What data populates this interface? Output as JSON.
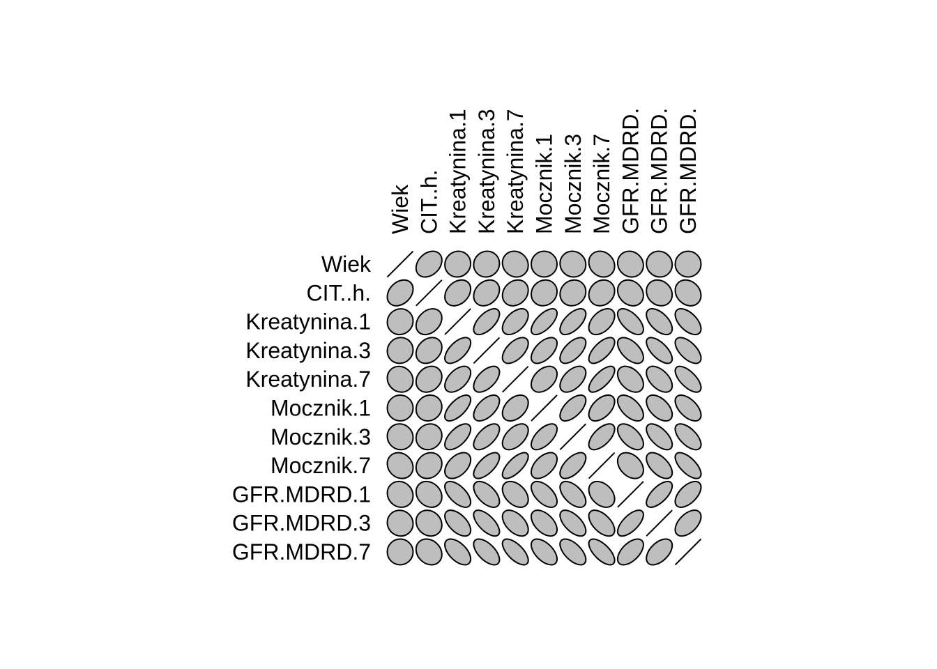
{
  "chart_data": {
    "type": "heatmap",
    "style": "ellipse correlation matrix",
    "row_labels": [
      "Wiek",
      "CIT..h.",
      "Kreatynina.1",
      "Kreatynina.3",
      "Kreatynina.7",
      "Mocznik.1",
      "Mocznik.3",
      "Mocznik.7",
      "GFR.MDRD.1",
      "GFR.MDRD.3",
      "GFR.MDRD.7"
    ],
    "column_labels": [
      "Wiek",
      "CIT..h.",
      "Kreatynina.1",
      "Kreatynina.3",
      "Kreatynina.7",
      "Mocznik.1",
      "Mocznik.3",
      "Mocznik.7",
      "GFR.MDRD.",
      "GFR.MDRD.",
      "GFR.MDRD."
    ],
    "matrix": [
      [
        1.0,
        0.3,
        0.05,
        0.05,
        -0.1,
        0.0,
        -0.05,
        -0.15,
        -0.1,
        -0.05,
        0.0
      ],
      [
        0.3,
        1.0,
        0.3,
        0.25,
        0.2,
        0.1,
        0.1,
        0.15,
        -0.2,
        -0.15,
        -0.2
      ],
      [
        0.05,
        0.3,
        1.0,
        0.6,
        0.5,
        0.65,
        0.6,
        0.45,
        -0.6,
        -0.55,
        -0.55
      ],
      [
        0.05,
        0.25,
        0.6,
        1.0,
        0.55,
        0.55,
        0.6,
        0.65,
        -0.55,
        -0.65,
        -0.6
      ],
      [
        -0.1,
        0.2,
        0.5,
        0.55,
        1.0,
        0.4,
        0.5,
        0.7,
        -0.4,
        -0.5,
        -0.65
      ],
      [
        0.0,
        0.1,
        0.65,
        0.55,
        0.4,
        1.0,
        0.6,
        0.5,
        -0.55,
        -0.5,
        -0.55
      ],
      [
        -0.05,
        0.1,
        0.6,
        0.6,
        0.5,
        0.6,
        1.0,
        0.6,
        -0.55,
        -0.6,
        -0.6
      ],
      [
        -0.15,
        0.15,
        0.45,
        0.65,
        0.7,
        0.5,
        0.6,
        1.0,
        -0.35,
        -0.55,
        -0.65
      ],
      [
        -0.1,
        -0.2,
        -0.6,
        -0.55,
        -0.4,
        -0.55,
        -0.55,
        -0.35,
        1.0,
        0.65,
        0.55
      ],
      [
        -0.05,
        -0.15,
        -0.55,
        -0.65,
        -0.5,
        -0.5,
        -0.6,
        -0.55,
        0.65,
        1.0,
        0.5
      ],
      [
        0.0,
        -0.2,
        -0.55,
        -0.6,
        -0.65,
        -0.55,
        -0.6,
        -0.65,
        0.55,
        0.5,
        1.0
      ]
    ],
    "fill_color": "#bebebe",
    "stroke_color": "#000000"
  }
}
